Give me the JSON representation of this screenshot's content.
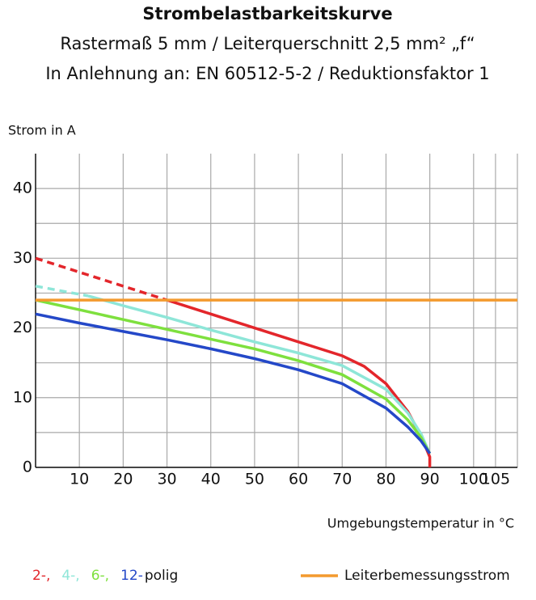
{
  "chart_data": {
    "type": "line",
    "title": "Strombelastbarkeitskurve",
    "subtitle": [
      "Rastermaß 5 mm / Leiterquerschnitt 2,5 mm² „f“",
      "In Anlehnung an: EN 60512-5-2 / Reduktionsfaktor 1"
    ],
    "y_label": "Strom in A",
    "x_label": "Umgebungstemperatur in °C",
    "xlim": [
      0,
      110
    ],
    "ylim": [
      0,
      45
    ],
    "xticks": [
      10,
      20,
      30,
      40,
      50,
      60,
      70,
      80,
      90,
      100,
      105
    ],
    "yticks": [
      0,
      10,
      20,
      30,
      40
    ],
    "y_minor_grid": [
      5,
      15,
      25,
      35
    ],
    "grid": true,
    "legend_suffix": "polig",
    "series": [
      {
        "name": "2-,",
        "color": "#e3262b",
        "dashed_to": 30,
        "x": [
          0,
          30,
          40,
          50,
          60,
          70,
          75,
          80,
          85,
          88,
          90,
          90
        ],
        "values": [
          30,
          24,
          22,
          20,
          18,
          16,
          14.5,
          12,
          8,
          4.5,
          1.5,
          0
        ]
      },
      {
        "name": "4-,",
        "color": "#8ee6d8",
        "dashed_to": 12,
        "x": [
          0,
          12,
          20,
          30,
          40,
          50,
          60,
          70,
          80,
          85,
          88,
          90
        ],
        "values": [
          26,
          24.6,
          23.2,
          21.5,
          19.7,
          18,
          16.4,
          14.6,
          11.2,
          7.8,
          4.8,
          2
        ]
      },
      {
        "name": "6-,",
        "color": "#7ee03e",
        "dashed_to": 0,
        "x": [
          0,
          10,
          20,
          30,
          40,
          50,
          60,
          70,
          80,
          85,
          88,
          90
        ],
        "values": [
          24,
          22.6,
          21.2,
          19.8,
          18.4,
          17,
          15.3,
          13.3,
          9.8,
          6.8,
          4.3,
          2
        ]
      },
      {
        "name": "12-",
        "color": "#2448c8",
        "dashed_to": 0,
        "x": [
          0,
          10,
          20,
          30,
          40,
          50,
          60,
          70,
          80,
          85,
          88,
          90
        ],
        "values": [
          22,
          20.7,
          19.5,
          18.3,
          17,
          15.6,
          14,
          12,
          8.5,
          5.8,
          3.8,
          2
        ]
      },
      {
        "name": "Leiterbemessungsstrom",
        "color": "#f39a2e",
        "dashed_to": 0,
        "x": [
          0,
          110
        ],
        "values": [
          24,
          24
        ]
      }
    ]
  }
}
